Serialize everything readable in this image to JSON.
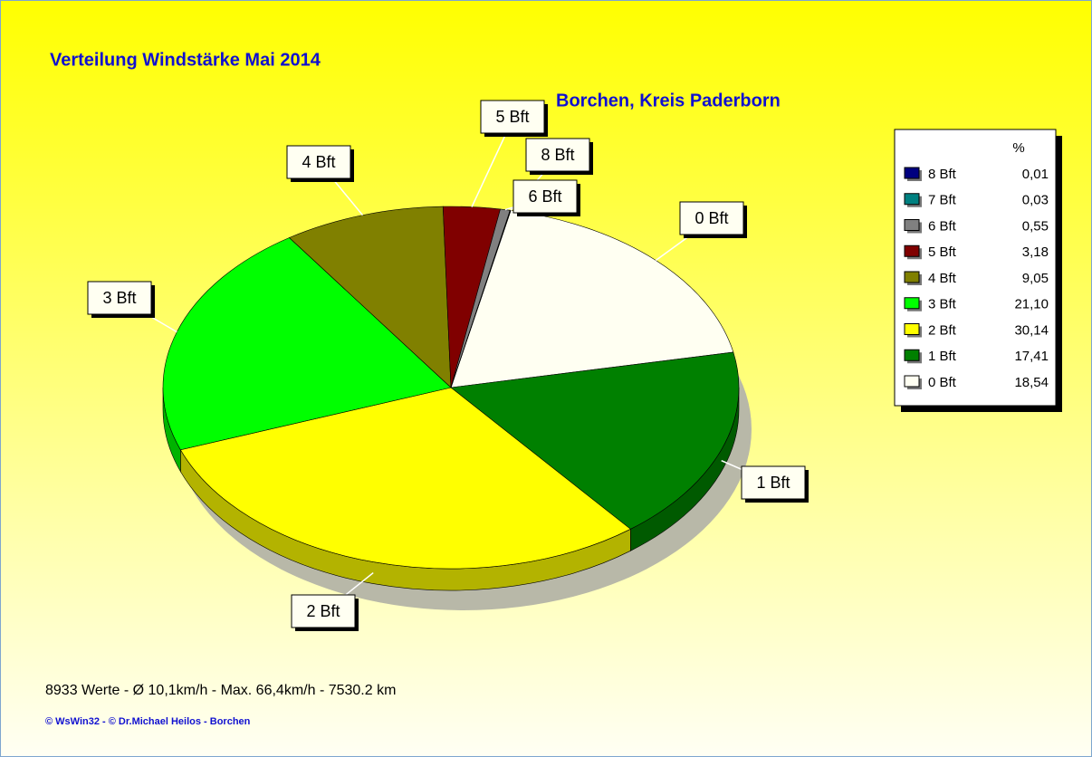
{
  "chart_data": {
    "type": "pie",
    "title": "Verteilung Windstärke  Mai 2014",
    "subtitle": "Borchen, Kreis Paderborn",
    "legend_title": "%",
    "categories": [
      "8 Bft",
      "7 Bft",
      "6 Bft",
      "5 Bft",
      "4 Bft",
      "3 Bft",
      "2 Bft",
      "1 Bft",
      "0 Bft"
    ],
    "values": [
      0.01,
      0.03,
      0.55,
      3.18,
      9.05,
      21.1,
      30.14,
      17.41,
      18.54
    ],
    "value_labels": [
      "0,01",
      "0,03",
      "0,55",
      "3,18",
      "9,05",
      "21,10",
      "30,14",
      "17,41",
      "18,54"
    ],
    "colors": [
      "#000080",
      "#008080",
      "#808080",
      "#800000",
      "#808000",
      "#00ff00",
      "#ffff00",
      "#008000",
      "#fffff2"
    ]
  },
  "footer": {
    "stats": "8933 Werte   -   Ø 10,1km/h  -  Max. 66,4km/h   -   7530.2 km",
    "credits": "© WsWin32  -  © Dr.Michael Heilos  -  Borchen"
  }
}
